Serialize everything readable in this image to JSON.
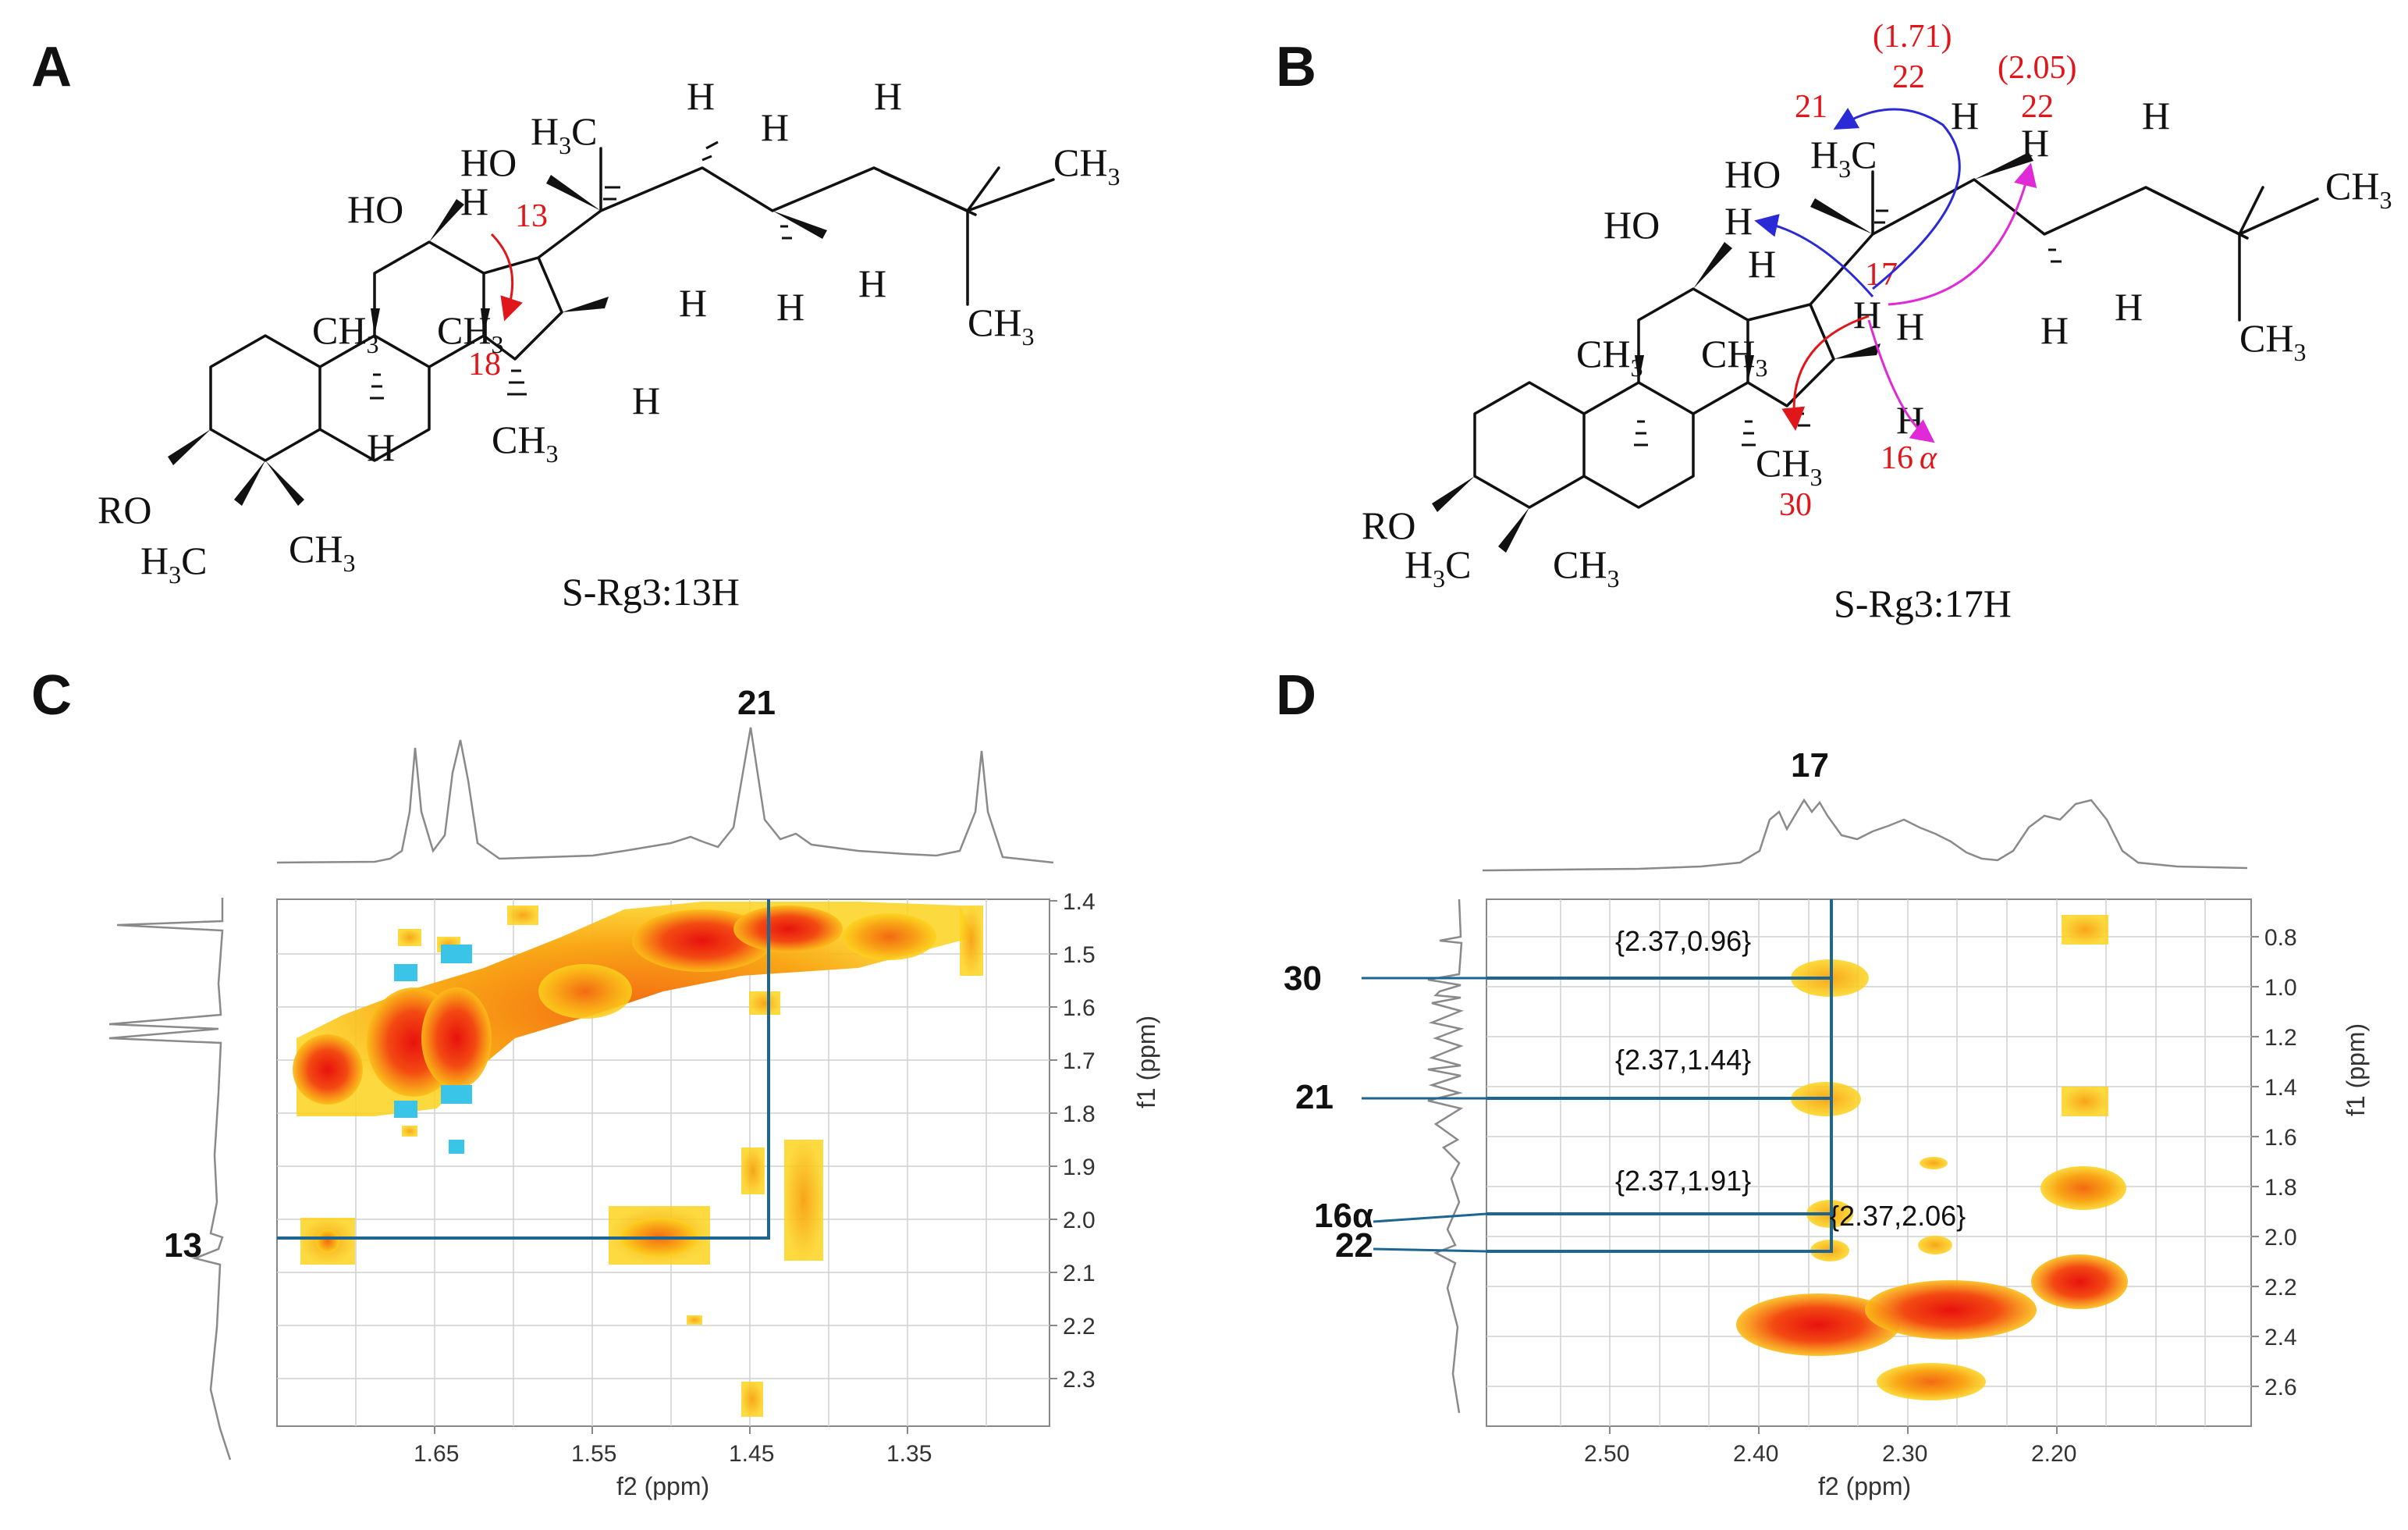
{
  "panels": {
    "A": {
      "letter": "A",
      "caption": "S-Rg3:13H",
      "labels": {
        "ho_top": "HO",
        "h3c": "H",
        "h3c_sub": "3",
        "h3c_c": "C",
        "ho_left": "HO",
        "h13": "H",
        "num13": "13",
        "num18": "18",
        "ch3_a": "CH",
        "ch3_a_sub": "3",
        "ch3_b": "CH",
        "ch3_b_sub": "3",
        "ch3_c": "CH",
        "ch3_c_sub": "3",
        "h_a": "H",
        "h_b": "H",
        "h_c": "H",
        "h_d": "H",
        "h_e": "H",
        "h_f": "H",
        "h_g": "H",
        "h_h": "H",
        "ch3_top": "CH",
        "ch3_top_sub": "3",
        "ch3_right": "CH",
        "ch3_right_sub": "3",
        "ro": "RO",
        "h3c_b": "H",
        "h3c_b_sub": "3",
        "h3c_b_c": "C",
        "ch3_d": "CH",
        "ch3_d_sub": "3"
      }
    },
    "B": {
      "letter": "B",
      "caption": "S-Rg3:17H",
      "labels": {
        "shift1": "(1.71)",
        "n22a": "22",
        "shift2": "(2.05)",
        "n22b": "22",
        "n21": "21",
        "n17": "17",
        "n16": "16",
        "n16_alpha": "α",
        "n30": "30",
        "h3c": "H",
        "h3c_sub": "3",
        "h3c_c": "C",
        "ho_top": "HO",
        "ho_left": "HO",
        "h_a": "H",
        "h_b": "H",
        "h_c": "H",
        "h_d": "H",
        "h_e": "H",
        "h_f": "H",
        "h_g": "H",
        "h_h": "H",
        "h_i": "H",
        "h_j": "H",
        "ch3_a": "CH",
        "ch3_a_sub": "3",
        "ch3_b": "CH",
        "ch3_b_sub": "3",
        "ch3_c": "CH",
        "ch3_c_sub": "3",
        "ch3_top": "CH",
        "ch3_top_sub": "3",
        "ch3_right": "CH",
        "ch3_right_sub": "3",
        "ro": "RO",
        "h3c_b": "H",
        "h3c_b_sub": "3",
        "h3c_b_c": "C",
        "ch3_d": "CH",
        "ch3_d_sub": "3"
      }
    },
    "C": {
      "letter": "C",
      "top_peak_label": "21",
      "left_peak_label": "13",
      "x_ticks": [
        "1.65",
        "1.55",
        "1.45",
        "1.35"
      ],
      "y_ticks": [
        "1.4",
        "1.5",
        "1.6",
        "1.7",
        "1.8",
        "1.9",
        "2.0",
        "2.1",
        "2.2",
        "2.3"
      ],
      "x_title": "f2 (ppm)",
      "y_title": "f1 (ppm)"
    },
    "D": {
      "letter": "D",
      "top_peak_label": "17",
      "left_peak_labels": [
        "30",
        "21",
        "16α",
        "22"
      ],
      "annotations": [
        "{2.37,0.96}",
        "{2.37,1.44}",
        "{2.37,1.91}",
        "{2.37,2.06}"
      ],
      "x_ticks": [
        "2.50",
        "2.40",
        "2.30",
        "2.20"
      ],
      "y_ticks": [
        "0.8",
        "1.0",
        "1.2",
        "1.4",
        "1.6",
        "1.8",
        "2.0",
        "2.2",
        "2.4",
        "2.6"
      ],
      "x_title": "f2 (ppm)",
      "y_title": "f1 (ppm)"
    }
  },
  "colors": {
    "guide": "#1f6591",
    "arrow_red": "#e0161b",
    "arrow_blue": "#2a2ad6",
    "arrow_magenta": "#e02ad8",
    "neg_peak": "#39c4e8"
  },
  "chart_data": [
    {
      "type": "heatmap",
      "panel": "C",
      "xlabel": "f2 (ppm)",
      "ylabel": "f1 (ppm)",
      "xlim": [
        1.73,
        1.27
      ],
      "ylim": [
        1.4,
        2.38
      ],
      "correlations": [
        {
          "f2": 1.45,
          "f1": 2.05
        }
      ]
    },
    {
      "type": "heatmap",
      "panel": "D",
      "xlabel": "f2 (ppm)",
      "ylabel": "f1 (ppm)",
      "xlim": [
        2.57,
        2.1
      ],
      "ylim": [
        0.7,
        2.75
      ],
      "correlations": [
        {
          "f2": 2.37,
          "f1": 0.96
        },
        {
          "f2": 2.37,
          "f1": 1.44
        },
        {
          "f2": 2.37,
          "f1": 1.91
        },
        {
          "f2": 2.37,
          "f1": 2.06
        }
      ]
    }
  ]
}
